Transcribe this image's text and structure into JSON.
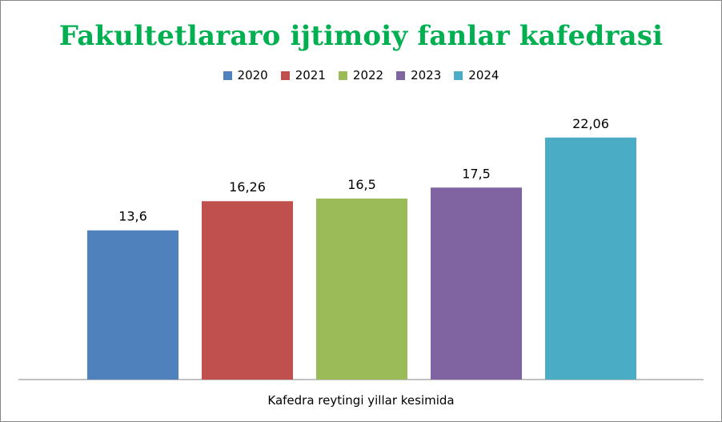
{
  "chart_data": {
    "type": "bar",
    "title": "Fakultetlararo ijtimoiy fanlar kafedrasi",
    "xlabel": "Kafedra reytingi yillar kesimida",
    "ylabel": "",
    "ylim": [
      0,
      25
    ],
    "grid": false,
    "legend_position": "top",
    "categories": [
      ""
    ],
    "series": [
      {
        "name": "2020",
        "value": 13.6,
        "label": "13,6",
        "color": "#4f81bd"
      },
      {
        "name": "2021",
        "value": 16.26,
        "label": "16,26",
        "color": "#c0504d"
      },
      {
        "name": "2022",
        "value": 16.5,
        "label": "16,5",
        "color": "#9bbb59"
      },
      {
        "name": "2023",
        "value": 17.5,
        "label": "17,5",
        "color": "#8064a2"
      },
      {
        "name": "2024",
        "value": 22.06,
        "label": "22,06",
        "color": "#4bacc6"
      }
    ]
  }
}
